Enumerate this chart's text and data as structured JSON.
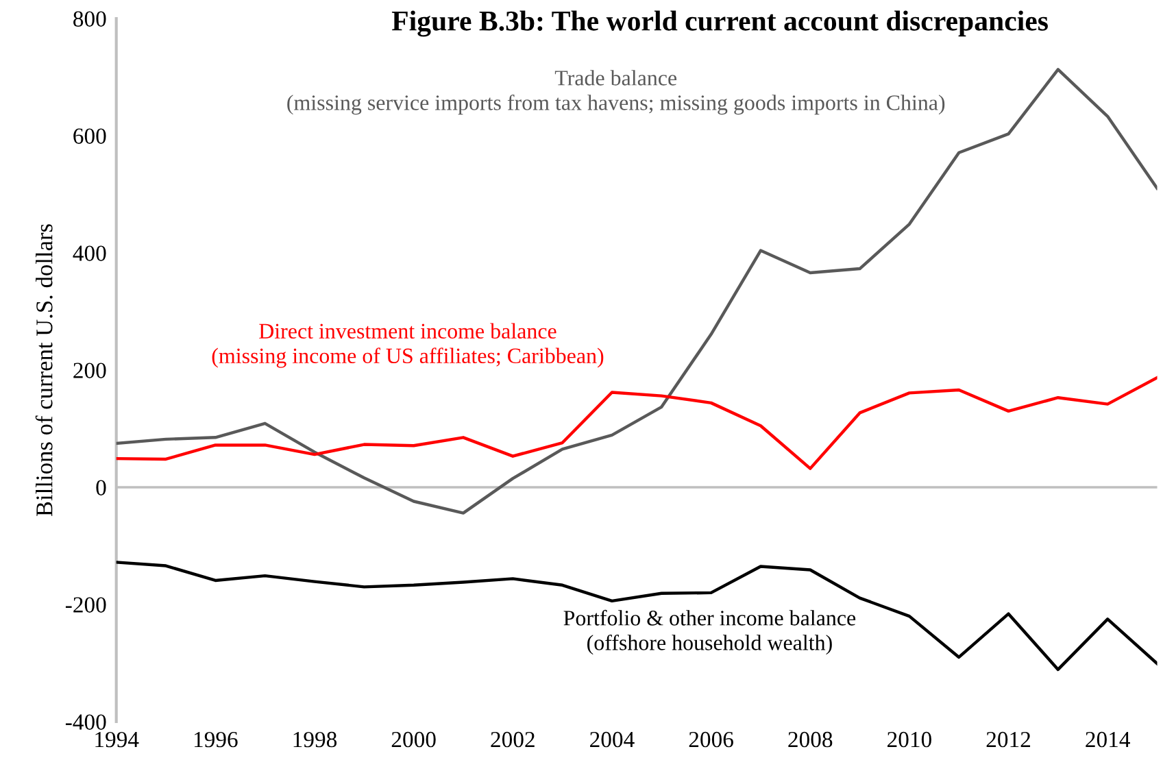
{
  "chart_data": {
    "type": "line",
    "title": "Figure B.3b: The world current account discrepancies",
    "ylabel": "Billions of current U.S. dollars",
    "x": [
      1994,
      1995,
      1996,
      1997,
      1998,
      1999,
      2000,
      2001,
      2002,
      2003,
      2004,
      2005,
      2006,
      2007,
      2008,
      2009,
      2010,
      2011,
      2012,
      2013,
      2014,
      2015
    ],
    "series": [
      {
        "name": "Trade balance\n(missing service imports from tax havens; missing goods imports in China)",
        "color": "#595959",
        "values": [
          75,
          82,
          85,
          109,
          60,
          16,
          -24,
          -44,
          15,
          65,
          89,
          137,
          261,
          404,
          366,
          373,
          449,
          571,
          603,
          713,
          633,
          510
        ]
      },
      {
        "name": "Direct investment income balance\n(missing income of US affiliates; Caribbean)",
        "color": "#ff0000",
        "values": [
          49,
          48,
          72,
          72,
          56,
          73,
          71,
          85,
          53,
          76,
          162,
          156,
          144,
          105,
          32,
          127,
          161,
          166,
          130,
          153,
          142,
          187
        ]
      },
      {
        "name": "Portfolio & other income balance\n(offshore household wealth)",
        "color": "#000000",
        "values": [
          -128,
          -134,
          -159,
          -151,
          -161,
          -170,
          -167,
          -162,
          -156,
          -167,
          -194,
          -181,
          -180,
          -135,
          -141,
          -189,
          -220,
          -290,
          -216,
          -311,
          -225,
          -301
        ]
      }
    ],
    "xlim": [
      1994,
      2015
    ],
    "xticks": [
      1994,
      1996,
      1998,
      2000,
      2002,
      2004,
      2006,
      2008,
      2010,
      2012,
      2014
    ],
    "ylim": [
      -400,
      800
    ],
    "yticks": [
      -400,
      -200,
      0,
      200,
      400,
      600,
      800
    ],
    "ref_lines": [
      {
        "axis": "y",
        "value": 0,
        "color": "#bfbfbf"
      }
    ],
    "grid": false,
    "legend": false,
    "marker": "none",
    "line_style": "solid"
  }
}
